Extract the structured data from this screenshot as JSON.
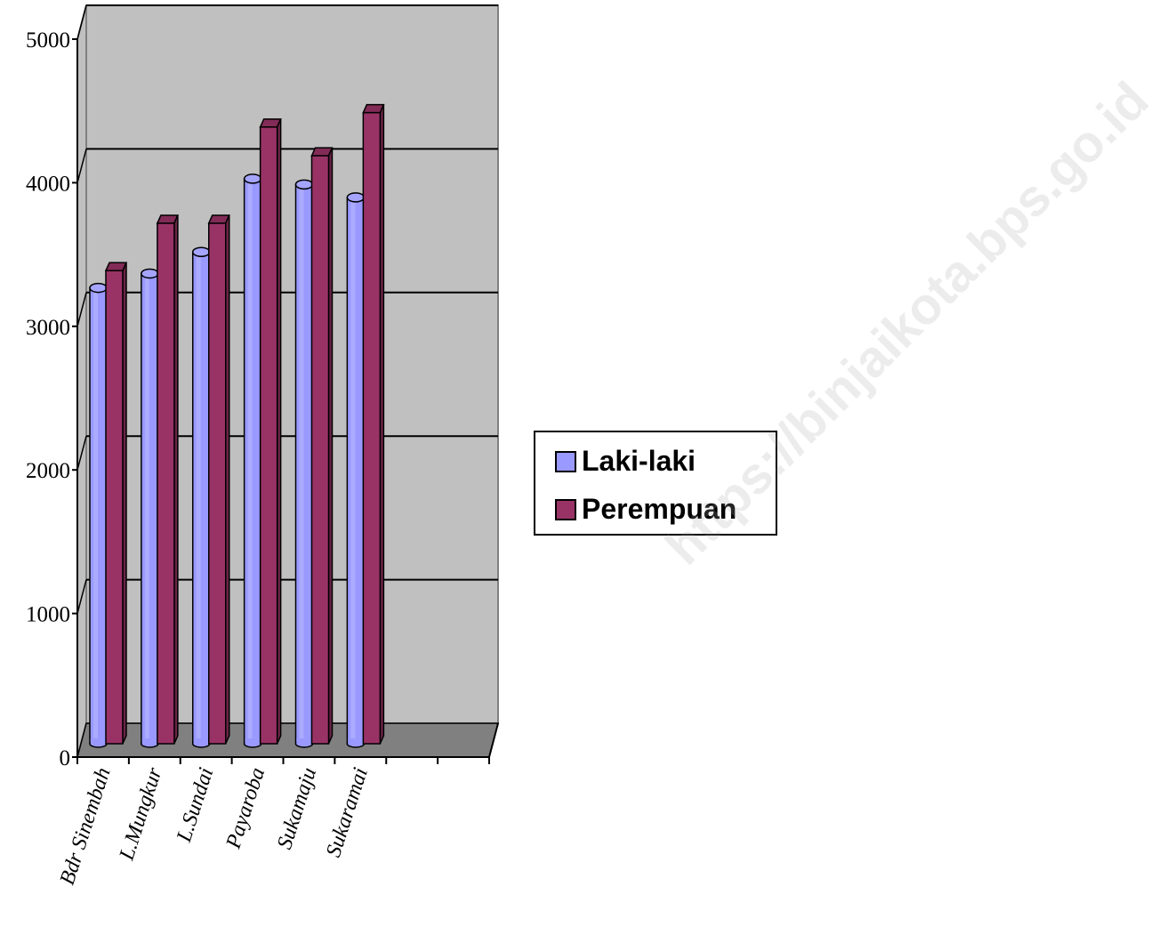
{
  "chart_data": {
    "type": "bar",
    "categories": [
      "Bdr Sinembah",
      "L.Mungkur",
      "L.Sundai",
      "Payaroba",
      "Sukamaju",
      "Sukaramai"
    ],
    "series": [
      {
        "name": "Laki-laki",
        "values": [
          3150,
          3250,
          3400,
          3910,
          3870,
          3780
        ],
        "color": "#9999ff"
      },
      {
        "name": "Perempuan",
        "values": [
          3270,
          3600,
          3600,
          4270,
          4070,
          4370
        ],
        "color": "#993366"
      }
    ],
    "yticks": [
      "0",
      "1000",
      "2000",
      "3000",
      "4000",
      "5000"
    ],
    "ylim": [
      0,
      5000
    ],
    "grid": true,
    "legend_position": "right",
    "style": "3d-cylinder"
  },
  "watermark": "https://binjaikota.bps.go.id"
}
